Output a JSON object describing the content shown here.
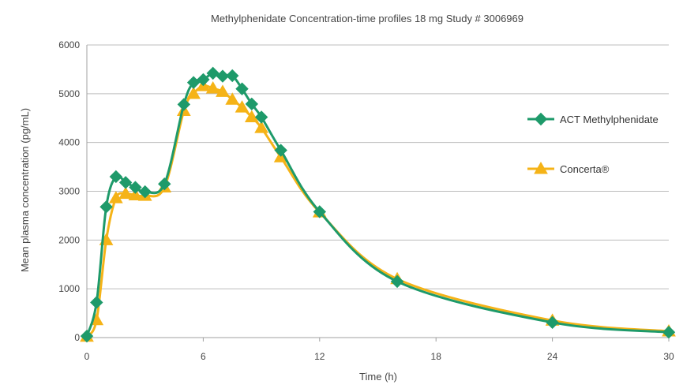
{
  "chart_data": {
    "type": "line",
    "title": "Methylphenidate Concentration-time profiles 18 mg Study # 3006969",
    "xlabel": "Time (h)",
    "ylabel": "Mean plasma concentration  (pg/mL)",
    "xlim": [
      0,
      30
    ],
    "ylim": [
      0,
      6000
    ],
    "xticks": [
      "0",
      "6",
      "12",
      "18",
      "24",
      "30"
    ],
    "yticks": [
      "0",
      "1000",
      "2000",
      "3000",
      "4000",
      "5000",
      "6000"
    ],
    "grid": "horizontal",
    "legend_position": "right",
    "series": [
      {
        "name": "ACT Methylphenidate",
        "color": "#1e9a6a",
        "marker": "diamond",
        "x": [
          0,
          0.5,
          1,
          1.5,
          2,
          2.5,
          3,
          4,
          5,
          5.5,
          6,
          6.5,
          7,
          7.5,
          8,
          8.5,
          9,
          10,
          12,
          16,
          24,
          30
        ],
        "y": [
          30,
          720,
          2680,
          3300,
          3180,
          3080,
          2990,
          3150,
          4780,
          5230,
          5290,
          5420,
          5360,
          5370,
          5100,
          4790,
          4520,
          3840,
          2580,
          1150,
          310,
          110
        ]
      },
      {
        "name": "Concerta®",
        "color": "#f5b317",
        "marker": "triangle",
        "x": [
          0,
          0.5,
          1,
          1.5,
          2,
          2.5,
          3,
          4,
          5,
          5.5,
          6,
          6.5,
          7,
          7.5,
          8,
          8.5,
          9,
          10,
          12,
          16,
          24,
          30
        ],
        "y": [
          20,
          360,
          2000,
          2860,
          2950,
          2920,
          2910,
          3080,
          4650,
          5000,
          5160,
          5110,
          5040,
          4880,
          4720,
          4520,
          4300,
          3700,
          2570,
          1200,
          350,
          130
        ]
      }
    ]
  }
}
